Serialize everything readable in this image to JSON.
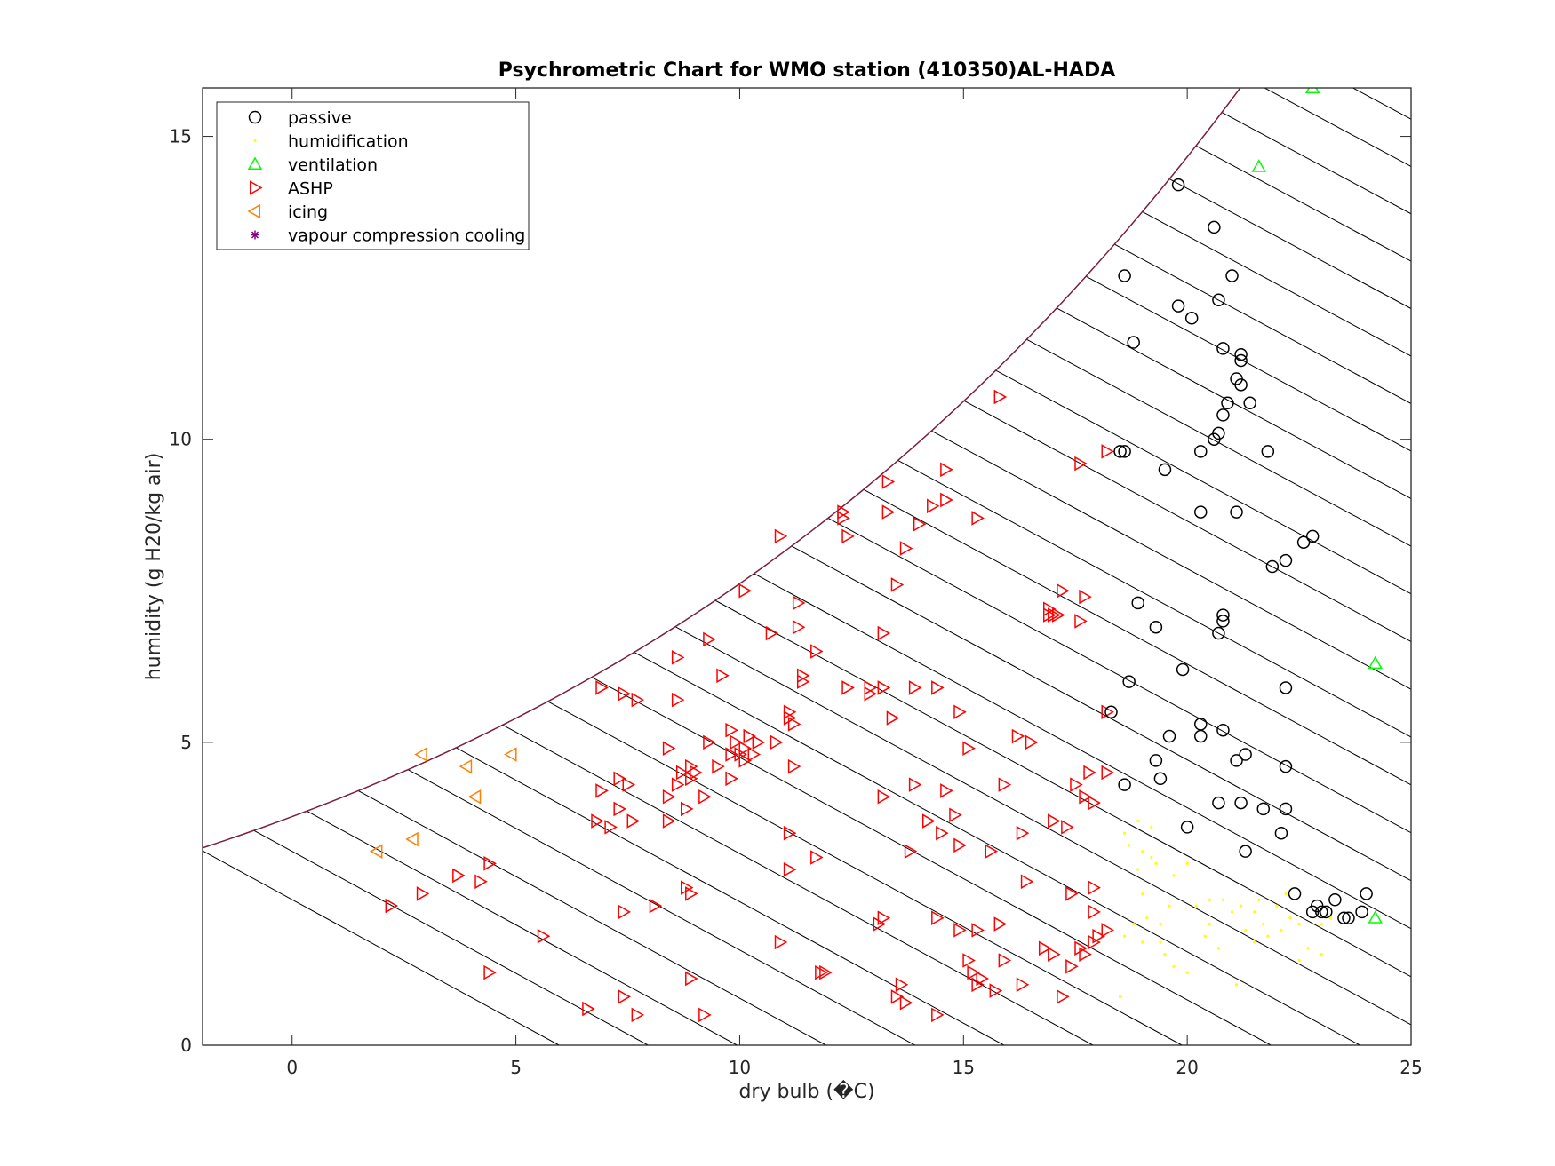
{
  "chart_data": {
    "type": "scatter",
    "title": "Psychrometric Chart for WMO station (410350)AL-HADA",
    "xlabel": "dry bulb (�C)",
    "ylabel": "humidity (g H20/kg air)",
    "xlim": [
      -2,
      25
    ],
    "ylim": [
      0,
      15.8
    ],
    "xticks": [
      0,
      5,
      10,
      15,
      20,
      25
    ],
    "yticks": [
      0,
      5,
      10,
      15
    ],
    "grid": false,
    "legend_position": "top-left",
    "saturation_curve_color": "#7a1f3d",
    "enthalpy_line_color": "#000000",
    "enthalpy_lines_kj_per_kg": [
      6,
      8,
      10,
      12,
      14,
      16,
      18,
      20,
      22,
      24,
      26,
      28,
      30,
      32,
      34,
      36,
      38,
      40,
      42,
      44,
      46,
      48,
      50,
      52,
      54,
      56,
      58,
      60,
      62,
      64
    ],
    "series": [
      {
        "name": "passive",
        "marker": "circle",
        "color": "#000000",
        "points": [
          [
            19.8,
            14.2
          ],
          [
            20.6,
            13.5
          ],
          [
            18.6,
            12.7
          ],
          [
            21.0,
            12.7
          ],
          [
            19.8,
            12.2
          ],
          [
            20.7,
            12.3
          ],
          [
            20.1,
            12.0
          ],
          [
            18.8,
            11.6
          ],
          [
            20.8,
            11.5
          ],
          [
            21.2,
            11.4
          ],
          [
            21.2,
            11.3
          ],
          [
            21.1,
            11.0
          ],
          [
            21.2,
            10.9
          ],
          [
            20.9,
            10.6
          ],
          [
            21.4,
            10.6
          ],
          [
            20.8,
            10.4
          ],
          [
            20.7,
            10.1
          ],
          [
            20.6,
            10.0
          ],
          [
            18.5,
            9.8
          ],
          [
            18.6,
            9.8
          ],
          [
            20.3,
            9.8
          ],
          [
            21.8,
            9.8
          ],
          [
            19.5,
            9.5
          ],
          [
            20.3,
            8.8
          ],
          [
            21.1,
            8.8
          ],
          [
            22.8,
            8.4
          ],
          [
            22.6,
            8.3
          ],
          [
            22.2,
            8.0
          ],
          [
            21.9,
            7.9
          ],
          [
            18.9,
            7.3
          ],
          [
            20.8,
            7.1
          ],
          [
            20.8,
            7.0
          ],
          [
            19.3,
            6.9
          ],
          [
            20.7,
            6.8
          ],
          [
            19.9,
            6.2
          ],
          [
            18.7,
            6.0
          ],
          [
            22.2,
            5.9
          ],
          [
            18.3,
            5.5
          ],
          [
            20.3,
            5.3
          ],
          [
            20.8,
            5.2
          ],
          [
            19.6,
            5.1
          ],
          [
            20.3,
            5.1
          ],
          [
            21.3,
            4.8
          ],
          [
            19.3,
            4.7
          ],
          [
            21.1,
            4.7
          ],
          [
            22.2,
            4.6
          ],
          [
            19.4,
            4.4
          ],
          [
            18.6,
            4.3
          ],
          [
            20.7,
            4.0
          ],
          [
            21.2,
            4.0
          ],
          [
            21.7,
            3.9
          ],
          [
            22.2,
            3.9
          ],
          [
            20.0,
            3.6
          ],
          [
            22.1,
            3.5
          ],
          [
            21.3,
            3.2
          ],
          [
            22.4,
            2.5
          ],
          [
            24.0,
            2.5
          ],
          [
            23.3,
            2.4
          ],
          [
            22.9,
            2.3
          ],
          [
            22.8,
            2.2
          ],
          [
            23.1,
            2.2
          ],
          [
            23.0,
            2.2
          ],
          [
            23.5,
            2.1
          ],
          [
            23.6,
            2.1
          ],
          [
            23.9,
            2.2
          ]
        ]
      },
      {
        "name": "humidification",
        "marker": "dot",
        "color": "#ffff00",
        "points": [
          [
            18.9,
            3.7
          ],
          [
            19.2,
            3.6
          ],
          [
            18.6,
            3.5
          ],
          [
            18.7,
            3.3
          ],
          [
            19.0,
            3.2
          ],
          [
            19.2,
            3.1
          ],
          [
            19.3,
            3.0
          ],
          [
            18.9,
            2.9
          ],
          [
            20.0,
            3.0
          ],
          [
            19.7,
            2.8
          ],
          [
            19.0,
            2.5
          ],
          [
            19.6,
            2.3
          ],
          [
            20.2,
            2.3
          ],
          [
            20.5,
            2.4
          ],
          [
            20.8,
            2.4
          ],
          [
            21.0,
            2.2
          ],
          [
            21.2,
            2.3
          ],
          [
            21.5,
            2.2
          ],
          [
            21.6,
            2.4
          ],
          [
            22.0,
            2.3
          ],
          [
            22.2,
            2.5
          ],
          [
            19.1,
            2.1
          ],
          [
            19.4,
            2.0
          ],
          [
            18.8,
            2.0
          ],
          [
            20.5,
            2.0
          ],
          [
            21.3,
            1.9
          ],
          [
            21.7,
            2.0
          ],
          [
            22.3,
            2.1
          ],
          [
            22.5,
            2.0
          ],
          [
            23.0,
            2.0
          ],
          [
            23.2,
            2.1
          ],
          [
            18.6,
            1.8
          ],
          [
            19.0,
            1.7
          ],
          [
            19.4,
            1.7
          ],
          [
            20.4,
            1.8
          ],
          [
            21.8,
            1.8
          ],
          [
            22.1,
            1.9
          ],
          [
            19.5,
            1.5
          ],
          [
            20.7,
            1.6
          ],
          [
            21.5,
            1.7
          ],
          [
            22.7,
            1.6
          ],
          [
            22.5,
            1.4
          ],
          [
            23.0,
            1.5
          ],
          [
            19.7,
            1.3
          ],
          [
            20.0,
            1.2
          ],
          [
            21.1,
            1.0
          ],
          [
            18.5,
            0.8
          ]
        ]
      },
      {
        "name": "ventilation",
        "marker": "triangle-up",
        "color": "#00ff00",
        "points": [
          [
            22.8,
            15.8
          ],
          [
            21.6,
            14.5
          ],
          [
            24.2,
            6.3
          ],
          [
            24.2,
            2.1
          ]
        ]
      },
      {
        "name": "ASHP",
        "marker": "triangle-right",
        "color": "#ff0000",
        "points": [
          [
            15.8,
            10.7
          ],
          [
            18.2,
            9.8
          ],
          [
            17.6,
            9.6
          ],
          [
            14.6,
            9.5
          ],
          [
            13.3,
            9.3
          ],
          [
            14.3,
            8.9
          ],
          [
            14.6,
            9.0
          ],
          [
            13.3,
            8.8
          ],
          [
            12.3,
            8.8
          ],
          [
            12.3,
            8.7
          ],
          [
            15.3,
            8.7
          ],
          [
            14.0,
            8.6
          ],
          [
            12.4,
            8.4
          ],
          [
            10.9,
            8.4
          ],
          [
            13.7,
            8.2
          ],
          [
            17.2,
            7.5
          ],
          [
            13.5,
            7.6
          ],
          [
            10.1,
            7.5
          ],
          [
            16.9,
            7.2
          ],
          [
            17.7,
            7.4
          ],
          [
            11.3,
            7.3
          ],
          [
            17.0,
            7.1
          ],
          [
            16.9,
            7.1
          ],
          [
            17.1,
            7.1
          ],
          [
            17.6,
            7.0
          ],
          [
            10.7,
            6.8
          ],
          [
            11.3,
            6.9
          ],
          [
            13.2,
            6.8
          ],
          [
            9.3,
            6.7
          ],
          [
            11.7,
            6.5
          ],
          [
            8.6,
            6.4
          ],
          [
            11.4,
            6.1
          ],
          [
            11.4,
            6.0
          ],
          [
            9.6,
            6.1
          ],
          [
            6.9,
            5.9
          ],
          [
            12.4,
            5.9
          ],
          [
            12.9,
            5.9
          ],
          [
            13.2,
            5.9
          ],
          [
            13.9,
            5.9
          ],
          [
            14.4,
            5.9
          ],
          [
            7.4,
            5.8
          ],
          [
            7.7,
            5.7
          ],
          [
            8.6,
            5.7
          ],
          [
            12.9,
            5.8
          ],
          [
            11.1,
            5.5
          ],
          [
            11.1,
            5.4
          ],
          [
            14.9,
            5.5
          ],
          [
            13.4,
            5.4
          ],
          [
            11.2,
            5.3
          ],
          [
            18.2,
            5.5
          ],
          [
            9.8,
            5.2
          ],
          [
            10.2,
            5.1
          ],
          [
            9.9,
            5.0
          ],
          [
            10.4,
            5.0
          ],
          [
            9.3,
            5.0
          ],
          [
            10.1,
            4.9
          ],
          [
            10.3,
            4.8
          ],
          [
            16.2,
            5.1
          ],
          [
            16.5,
            5.0
          ],
          [
            10.1,
            4.7
          ],
          [
            8.4,
            4.9
          ],
          [
            9.8,
            4.8
          ],
          [
            10.0,
            4.8
          ],
          [
            10.8,
            5.0
          ],
          [
            15.1,
            4.9
          ],
          [
            11.2,
            4.6
          ],
          [
            8.9,
            4.6
          ],
          [
            8.7,
            4.5
          ],
          [
            9.0,
            4.5
          ],
          [
            9.5,
            4.6
          ],
          [
            8.9,
            4.4
          ],
          [
            17.8,
            4.5
          ],
          [
            18.2,
            4.5
          ],
          [
            7.3,
            4.4
          ],
          [
            9.8,
            4.4
          ],
          [
            7.5,
            4.3
          ],
          [
            8.6,
            4.3
          ],
          [
            13.9,
            4.3
          ],
          [
            15.9,
            4.3
          ],
          [
            17.5,
            4.3
          ],
          [
            6.9,
            4.2
          ],
          [
            14.6,
            4.2
          ],
          [
            8.4,
            4.1
          ],
          [
            9.2,
            4.1
          ],
          [
            13.2,
            4.1
          ],
          [
            17.7,
            4.1
          ],
          [
            17.9,
            4.0
          ],
          [
            7.3,
            3.9
          ],
          [
            8.8,
            3.9
          ],
          [
            14.8,
            3.8
          ],
          [
            6.8,
            3.7
          ],
          [
            7.6,
            3.7
          ],
          [
            8.4,
            3.7
          ],
          [
            14.2,
            3.7
          ],
          [
            17.0,
            3.7
          ],
          [
            17.3,
            3.6
          ],
          [
            7.1,
            3.6
          ],
          [
            11.1,
            3.5
          ],
          [
            14.5,
            3.5
          ],
          [
            16.3,
            3.5
          ],
          [
            14.9,
            3.3
          ],
          [
            13.8,
            3.2
          ],
          [
            15.6,
            3.2
          ],
          [
            11.7,
            3.1
          ],
          [
            4.4,
            3.0
          ],
          [
            11.1,
            2.9
          ],
          [
            3.7,
            2.8
          ],
          [
            4.2,
            2.7
          ],
          [
            16.4,
            2.7
          ],
          [
            17.9,
            2.6
          ],
          [
            2.9,
            2.5
          ],
          [
            8.8,
            2.6
          ],
          [
            8.9,
            2.5
          ],
          [
            17.4,
            2.5
          ],
          [
            8.1,
            2.3
          ],
          [
            2.2,
            2.3
          ],
          [
            7.4,
            2.2
          ],
          [
            17.9,
            2.2
          ],
          [
            13.2,
            2.1
          ],
          [
            14.4,
            2.1
          ],
          [
            13.1,
            2.0
          ],
          [
            15.8,
            2.0
          ],
          [
            14.9,
            1.9
          ],
          [
            15.3,
            1.9
          ],
          [
            18.2,
            1.9
          ],
          [
            18.0,
            1.8
          ],
          [
            5.6,
            1.8
          ],
          [
            10.9,
            1.7
          ],
          [
            17.9,
            1.7
          ],
          [
            16.8,
            1.6
          ],
          [
            17.6,
            1.6
          ],
          [
            17.0,
            1.5
          ],
          [
            17.7,
            1.5
          ],
          [
            15.1,
            1.4
          ],
          [
            15.9,
            1.4
          ],
          [
            17.4,
            1.3
          ],
          [
            11.8,
            1.2
          ],
          [
            11.9,
            1.2
          ],
          [
            15.2,
            1.2
          ],
          [
            15.4,
            1.1
          ],
          [
            4.4,
            1.2
          ],
          [
            8.9,
            1.1
          ],
          [
            13.6,
            1.0
          ],
          [
            15.3,
            1.0
          ],
          [
            16.3,
            1.0
          ],
          [
            15.7,
            0.9
          ],
          [
            13.5,
            0.8
          ],
          [
            17.2,
            0.8
          ],
          [
            7.4,
            0.8
          ],
          [
            13.7,
            0.7
          ],
          [
            6.6,
            0.6
          ],
          [
            9.2,
            0.5
          ],
          [
            7.7,
            0.5
          ],
          [
            14.4,
            0.5
          ]
        ]
      },
      {
        "name": "icing",
        "marker": "triangle-left",
        "color": "#ff8000",
        "points": [
          [
            2.9,
            4.8
          ],
          [
            4.9,
            4.8
          ],
          [
            3.9,
            4.6
          ],
          [
            4.1,
            4.1
          ],
          [
            2.7,
            3.4
          ],
          [
            1.9,
            3.2
          ]
        ]
      },
      {
        "name": "vapour compression cooling",
        "marker": "asterisk",
        "color": "#800080",
        "points": []
      }
    ]
  }
}
